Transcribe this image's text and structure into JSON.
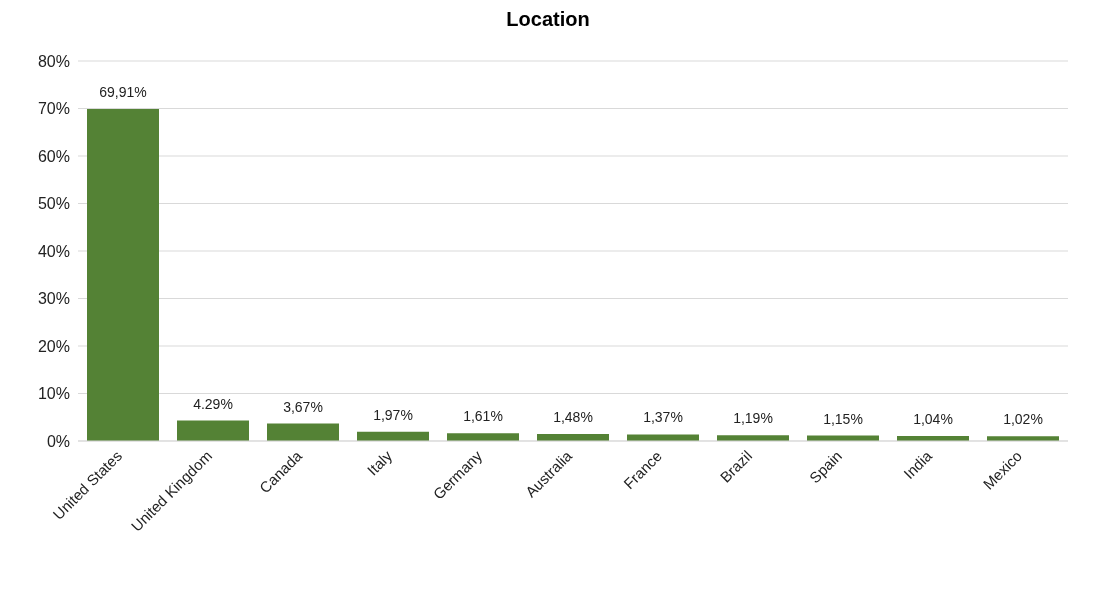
{
  "chart_data": {
    "type": "bar",
    "title": "Location",
    "categories": [
      "United States",
      "United Kingdom",
      "Canada",
      "Italy",
      "Germany",
      "Australia",
      "France",
      "Brazil",
      "Spain",
      "India",
      "Mexico"
    ],
    "values": [
      69.91,
      4.29,
      3.67,
      1.97,
      1.61,
      1.48,
      1.37,
      1.19,
      1.15,
      1.04,
      1.02
    ],
    "value_labels": [
      "69,91%",
      "4.29%",
      "3,67%",
      "1,97%",
      "1,61%",
      "1,48%",
      "1,37%",
      "1,19%",
      "1,15%",
      "1,04%",
      "1,02%"
    ],
    "color": "#548235",
    "ylim": [
      0,
      80
    ],
    "yticks": [
      {
        "value": 0,
        "label": "0%"
      },
      {
        "value": 10,
        "label": "10%"
      },
      {
        "value": 20,
        "label": "20%"
      },
      {
        "value": 30,
        "label": "30%"
      },
      {
        "value": 40,
        "label": "40%"
      },
      {
        "value": 50,
        "label": "50%"
      },
      {
        "value": 60,
        "label": "60%"
      },
      {
        "value": 70,
        "label": "70%"
      },
      {
        "value": 80,
        "label": "80%"
      }
    ],
    "grid": "y"
  }
}
